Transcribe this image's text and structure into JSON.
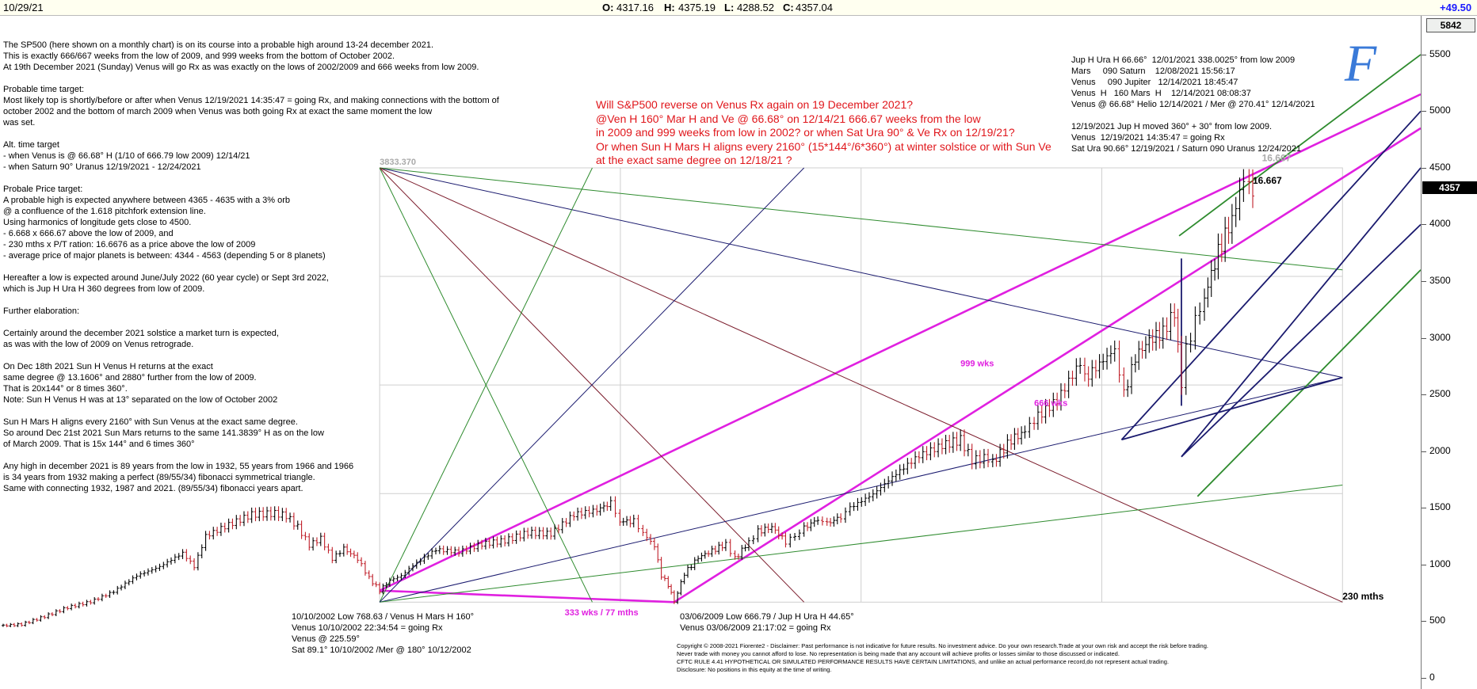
{
  "header": {
    "date": "10/29/21",
    "open_label": "O:",
    "open": "4317.16",
    "high_label": "H:",
    "high": "4375.19",
    "low_label": "L:",
    "low": "4288.52",
    "close_label": "C:",
    "close": "4357.04",
    "change": "+49.50"
  },
  "left_text": [
    "The SP500 (here shown on a monthly chart) is on its course into a probable high around 13-24 december 2021.",
    "This is exactly 666/667  weeks from the low of 2009, and 999 weeks from the bottom of October 2002.",
    "At 19th December 2021 (Sunday) Venus will go Rx as was exactly on the lows of 2002/2009 and 666 weeks from low 2009.",
    "",
    "Probable time target:",
    "Most likely top is shortly/before or after when Venus  12/19/2021 14:35:47 = going Rx, and making connections with the bottom of",
    "october 2002 and the bottom of march 2009 when  Venus was both going Rx at exact the same moment the low",
    "was set.",
    "",
    "Alt. time target",
    "- when Venus is @ 66.68° H (1/10 of 666.79 low 2009) 12/14/21",
    "- when Saturn 90° Uranus 12/19/2021 - 12/24/2021",
    "",
    "Probale Price target:",
    "A probable high is expected anywhere between 4365 - 4635 with a 3% orb",
    "@ a confluence of the 1.618 pitchfork extension line.",
    "Using harmonics of longitude gets close to 4500.",
    "- 6.668 x 666.67 above the low of 2009, and",
    "- 230 mths x P/T ration: 16.6676 as a price above the low of 2009",
    "- average price of major planets is between: 4344 - 4563 (depending 5 or 8 planets)",
    "",
    "Hereafter a low is expected around June/July 2022 (60 year cycle) or Sept 3rd 2022,",
    "which is Jup H Ura H 360 degrees from low of 2009.",
    "",
    "Further elaboration:",
    "",
    "Certainly around the december 2021 solstice a market turn is expected,",
    "as was with the low of 2009 on Venus retrograde.",
    "",
    "On Dec 18th 2021 Sun H Venus H returns at the exact",
    "same degree @ 13.1606° and 2880° further from the low of 2009.",
    "That is 20x144° or 8 times 360°.",
    "Note: Sun H Venus H was at 13° separated on the low of October 2002",
    "",
    "Sun H Mars H aligns every 2160° with Sun Venus at the exact same degree.",
    "So around Dec 21st 2021 Sun Mars returns to the same 141.3839° H as on the low",
    "of March 2009. That is 15x 144° and 6 times 360°",
    "",
    "Any high in december 2021 is 89 years from the low in 1932, 55 years from 1966 and 1966",
    "is 34 years from 1932 making a perfect (89/55/34) fibonacci symmetrical triangle.",
    "Same with connecting 1932, 1987 and 2021. (89/55/34) fibonacci years apart."
  ],
  "red_question": [
    "Will S&P500 reverse on Venus Rx again on 19 December 2021?",
    "@Ven H 160° Mar H and Ve @ 66.68° on 12/14/21 666.67 weeks from the low",
    "in 2009 and 999 weeks from low in 2002? or when Sat Ura 90° & Ve Rx on 12/19/21?",
    "Or when Sun H Mars H aligns every 2160° (15*144°/6*360°) at winter solstice or with Sun Ve",
    "at the exact same degree on 12/18/21 ?"
  ],
  "right_notes": [
    "Jup H Ura H 66.66°  12/01/2021 338.0025° from low 2009",
    "Mars     090 Saturn    12/08/2021 15:56:17",
    "Venus     090 Jupiter   12/14/2021 18:45:47",
    "Venus  H   160 Mars  H    12/14/2021 08:08:37",
    "Venus @ 66.68° Helio 12/14/2021 / Mer @ 270.41° 12/14/2021",
    "",
    "12/19/2021 Jup H moved 360° + 30° from low 2009.",
    "Venus  12/19/2021 14:35:47 = going Rx",
    "Sat Ura 90.66° 12/19/2021 / Saturn 090 Uranus 12/24/2021"
  ],
  "low2002_notes": [
    "10/10/2002 Low 768.63 / Venus H Mars H 160°",
    "Venus  10/10/2002 22:34:54 = going Rx",
    "Venus @ 225.59°",
    "Sat 89.1° 10/10/2002 /Mer @ 180° 10/12/2002"
  ],
  "low2009_notes": [
    "03/06/2009 Low 666.79 / Jup H Ura H 44.65°",
    "Venus  03/06/2009 21:17:02 = going Rx"
  ],
  "disclaimer": [
    "Copyright © 2008-2021 Fiorente2 -  Disclaimer: Past performance is not indicative for future results. No investment advice. Do your own research.Trade at your own risk and accept the risk before trading.",
    "Never trade with money you cannot afford to lose. No representation is being made that any account will achieve profits or losses similar to those discussed or indicated.",
    "CFTC RULE 4.41 HYPOTHETICAL OR SIMULATED PERFORMANCE RESULTS HAVE CERTAIN LIMITATIONS, and unlike an actual performance record,do not represent actual trading.",
    "Disclosure: No positions in this equity at the time of writing."
  ],
  "logo_letter": "F",
  "colors": {
    "magenta": "#e020e0",
    "green": "#2e8b2e",
    "navy": "#1a1a6e",
    "dark_red": "#7a1a2a",
    "red_text": "#e0161b",
    "up_bar": "#000000",
    "down_bar": "#c0202a",
    "logo_blue": "#3a7ad8"
  },
  "chart_data": {
    "type": "bar",
    "title": "",
    "series_name": "SP500 monthly",
    "x_range": [
      1994.6,
      2025.4
    ],
    "ylim": [
      -100,
      5842
    ],
    "y_ticks": [
      0,
      500,
      1000,
      1500,
      2000,
      2500,
      3000,
      3500,
      4000,
      4500,
      5000,
      5500
    ],
    "y_axis_top_label": "5842",
    "last_price_label": "4357",
    "left_range_label": "3833.370",
    "prices": [
      [
        1994.6,
        460
      ],
      [
        1995.0,
        470
      ],
      [
        1995.5,
        540
      ],
      [
        1996.0,
        620
      ],
      [
        1996.5,
        670
      ],
      [
        1997.0,
        760
      ],
      [
        1997.5,
        900
      ],
      [
        1998.0,
        980
      ],
      [
        1998.5,
        1100
      ],
      [
        1998.75,
        980
      ],
      [
        1999.0,
        1250
      ],
      [
        1999.5,
        1350
      ],
      [
        2000.0,
        1440
      ],
      [
        2000.5,
        1450
      ],
      [
        2000.75,
        1430
      ],
      [
        2001.0,
        1330
      ],
      [
        2001.25,
        1170
      ],
      [
        2001.5,
        1230
      ],
      [
        2001.75,
        1050
      ],
      [
        2002.0,
        1140
      ],
      [
        2002.3,
        1050
      ],
      [
        2002.55,
        880
      ],
      [
        2002.78,
        768.63
      ],
      [
        2003.0,
        860
      ],
      [
        2003.25,
        900
      ],
      [
        2003.5,
        990
      ],
      [
        2004.0,
        1130
      ],
      [
        2004.5,
        1110
      ],
      [
        2005.0,
        1180
      ],
      [
        2005.5,
        1210
      ],
      [
        2006.0,
        1280
      ],
      [
        2006.5,
        1270
      ],
      [
        2007.0,
        1440
      ],
      [
        2007.5,
        1480
      ],
      [
        2007.8,
        1540
      ],
      [
        2008.0,
        1380
      ],
      [
        2008.3,
        1380
      ],
      [
        2008.5,
        1280
      ],
      [
        2008.75,
        1160
      ],
      [
        2008.9,
        900
      ],
      [
        2009.05,
        820
      ],
      [
        2009.18,
        666.79
      ],
      [
        2009.4,
        920
      ],
      [
        2009.7,
        1060
      ],
      [
        2010.0,
        1120
      ],
      [
        2010.3,
        1180
      ],
      [
        2010.5,
        1050
      ],
      [
        2010.8,
        1200
      ],
      [
        2011.0,
        1290
      ],
      [
        2011.3,
        1330
      ],
      [
        2011.6,
        1200
      ],
      [
        2011.8,
        1250
      ],
      [
        2012.0,
        1320
      ],
      [
        2012.3,
        1400
      ],
      [
        2012.5,
        1360
      ],
      [
        2012.8,
        1420
      ],
      [
        2013.0,
        1500
      ],
      [
        2013.5,
        1620
      ],
      [
        2014.0,
        1800
      ],
      [
        2014.5,
        1960
      ],
      [
        2015.0,
        2050
      ],
      [
        2015.4,
        2100
      ],
      [
        2015.65,
        1920
      ],
      [
        2016.0,
        1940
      ],
      [
        2016.1,
        1900
      ],
      [
        2016.5,
        2100
      ],
      [
        2016.8,
        2170
      ],
      [
        2017.0,
        2280
      ],
      [
        2017.5,
        2450
      ],
      [
        2018.0,
        2780
      ],
      [
        2018.1,
        2640
      ],
      [
        2018.5,
        2800
      ],
      [
        2018.75,
        2900
      ],
      [
        2018.95,
        2500
      ],
      [
        2019.2,
        2830
      ],
      [
        2019.5,
        2980
      ],
      [
        2019.8,
        3050
      ],
      [
        2020.05,
        3230
      ],
      [
        2020.2,
        2580
      ],
      [
        2020.3,
        2900
      ],
      [
        2020.5,
        3150
      ],
      [
        2020.7,
        3360
      ],
      [
        2021.0,
        3760
      ],
      [
        2021.3,
        4050
      ],
      [
        2021.55,
        4400
      ],
      [
        2021.67,
        4300
      ],
      [
        2021.83,
        4357.04
      ]
    ],
    "annotations": [
      {
        "text": "999 wks",
        "x": 2015.4,
        "y": 2750
      },
      {
        "text": "666 wks",
        "x": 2017.0,
        "y": 2400
      },
      {
        "text": "333 wks / 77 mths",
        "x": 2006.8,
        "y": 550
      },
      {
        "text": "230 mths",
        "x": 2023.7,
        "y": 690
      },
      {
        "text": "16.667",
        "x": 2021.75,
        "y": 4360
      },
      {
        "text": "16.667",
        "x": 2021.95,
        "y": 4560
      }
    ],
    "lines": [
      {
        "role": "999wks",
        "color": "magenta",
        "pts": [
          [
            2002.78,
            768.63
          ],
          [
            2025.4,
            5150
          ]
        ]
      },
      {
        "role": "666wks",
        "color": "magenta",
        "pts": [
          [
            2009.18,
            666.79
          ],
          [
            2025.4,
            4850
          ]
        ]
      },
      {
        "role": "333wks",
        "color": "magenta",
        "pts": [
          [
            2002.78,
            768.63
          ],
          [
            2009.18,
            666.79
          ]
        ]
      },
      {
        "role": "fan",
        "color": "navy",
        "pts": [
          [
            2002.78,
            4500
          ],
          [
            2023.7,
            2650
          ]
        ]
      },
      {
        "role": "fan",
        "color": "green",
        "pts": [
          [
            2002.78,
            4500
          ],
          [
            2023.7,
            3600
          ]
        ]
      },
      {
        "role": "fan",
        "color": "dark_red",
        "pts": [
          [
            2002.78,
            4500
          ],
          [
            2023.7,
            666.79
          ]
        ]
      },
      {
        "role": "fan",
        "color": "dark_red",
        "pts": [
          [
            2002.78,
            4500
          ],
          [
            2012.0,
            666.79
          ]
        ]
      },
      {
        "role": "fan",
        "color": "green",
        "pts": [
          [
            2002.78,
            4500
          ],
          [
            2007.4,
            666.79
          ]
        ]
      },
      {
        "role": "fan",
        "color": "navy",
        "pts": [
          [
            2002.78,
            666.79
          ],
          [
            2023.7,
            2650
          ]
        ]
      },
      {
        "role": "fan",
        "color": "green",
        "pts": [
          [
            2002.78,
            666.79
          ],
          [
            2023.7,
            1700
          ]
        ]
      },
      {
        "role": "fan",
        "color": "green",
        "pts": [
          [
            2002.78,
            666.79
          ],
          [
            2007.4,
            4500
          ]
        ]
      },
      {
        "role": "fan",
        "color": "navy",
        "pts": [
          [
            2002.78,
            666.79
          ],
          [
            2012.0,
            4500
          ]
        ]
      },
      {
        "role": "pitchfork",
        "color": "navy",
        "pts": [
          [
            2018.9,
            2100
          ],
          [
            2025.4,
            5000
          ]
        ]
      },
      {
        "role": "pitchfork",
        "color": "navy",
        "pts": [
          [
            2020.2,
            1950
          ],
          [
            2025.4,
            4500
          ]
        ]
      },
      {
        "role": "pitchfork",
        "color": "navy",
        "pts": [
          [
            2020.2,
            1950
          ],
          [
            2025.4,
            4000
          ]
        ]
      },
      {
        "role": "pitchfork",
        "color": "navy",
        "pts": [
          [
            2020.2,
            2400
          ],
          [
            2020.2,
            3700
          ]
        ]
      },
      {
        "role": "pitchfork",
        "color": "green",
        "pts": [
          [
            2020.15,
            3900
          ],
          [
            2025.4,
            5500
          ]
        ]
      },
      {
        "role": "pitchfork",
        "color": "green",
        "pts": [
          [
            2020.55,
            1600
          ],
          [
            2025.4,
            3600
          ]
        ]
      },
      {
        "role": "pitchfork",
        "color": "navy",
        "pts": [
          [
            2018.9,
            2100
          ],
          [
            2023.7,
            2650
          ]
        ]
      }
    ]
  }
}
